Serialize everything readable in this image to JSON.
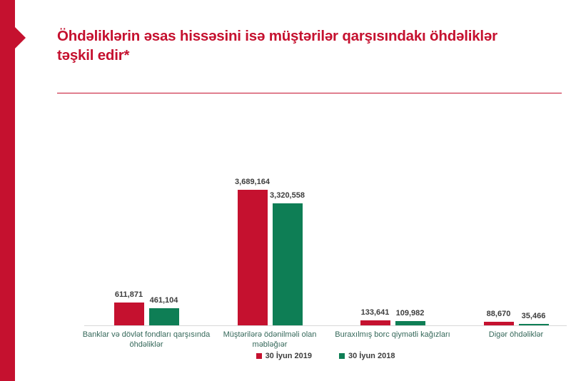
{
  "slide": {
    "title_lines": [
      "Öhdəliklərin əsas hissəsini isə müştərilər qarşısındakı öhdəliklər",
      "təşkil edir*"
    ],
    "title": "Öhdəliklərin əsas hissəsini isə müştərilər qarşısındakı öhdəliklər təşkil edir*",
    "accent_color": "#c5112f",
    "divider_color": "#c5112f"
  },
  "chart_data": {
    "type": "bar",
    "title": "",
    "xlabel": "",
    "ylabel": "",
    "ylim": [
      0,
      3689164
    ],
    "grid": false,
    "legend_position": "bottom",
    "categories": [
      "Banklar və dövlət fondları qarşısında öhdəliklər",
      "Müştərilərə ödənilməli olan məbləğıər",
      "Buraxılmış borc qiymətli kağızları",
      "Digər öhdəliklər"
    ],
    "category_lines": [
      [
        "Banklar və dövlət fondları qarşısında",
        "öhdəliklər"
      ],
      [
        "Müştərilərə ödənilməli olan",
        "məbləğıər"
      ],
      [
        "Buraxılmış borc qiymətli kağızları"
      ],
      [
        "Digər öhdəliklər"
      ]
    ],
    "series": [
      {
        "name": "30 İyun 2019",
        "color": "#c5112f",
        "values": [
          611871,
          3689164,
          133641,
          88670
        ],
        "labels": [
          "611,871",
          "3,689,164",
          "133,641",
          "88,670"
        ]
      },
      {
        "name": "30 İyun 2018",
        "color": "#0e7e55",
        "values": [
          461104,
          3320558,
          109982,
          35466
        ],
        "labels": [
          "461,104",
          "3,320,558",
          "109,982",
          "35,466"
        ]
      }
    ],
    "colors": {
      "axis_line": "#d9d9d9",
      "category_label": "#35685a",
      "value_label": "#3d3d3d",
      "legend_label": "#3d3d3d"
    }
  }
}
